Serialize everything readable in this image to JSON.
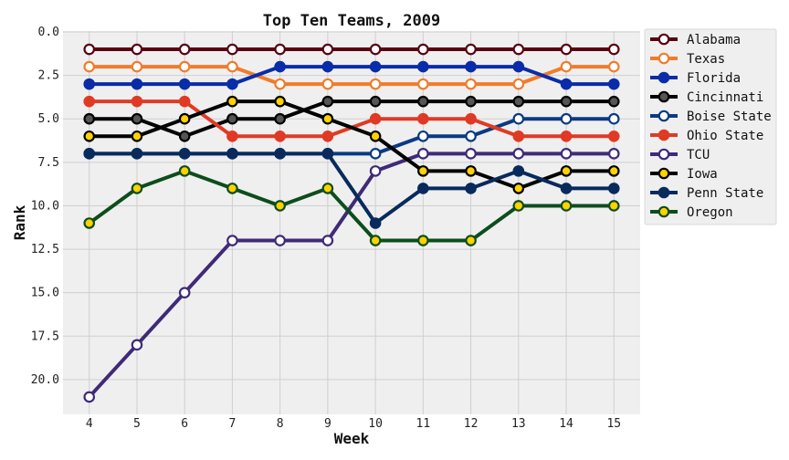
{
  "chart_data": {
    "type": "line",
    "title": "Top Ten Teams, 2009",
    "xlabel": "Week",
    "ylabel": "Rank",
    "x": [
      4,
      5,
      6,
      7,
      8,
      9,
      10,
      11,
      12,
      13,
      14,
      15
    ],
    "ylim": [
      0,
      22
    ],
    "y_inverted": true,
    "yticks": [
      "0.0",
      "2.5",
      "5.0",
      "7.5",
      "10.0",
      "12.5",
      "15.0",
      "17.5",
      "20.0"
    ],
    "grid": true,
    "legend_position": "outside-right-top",
    "background": "#efefef",
    "series": [
      {
        "name": "Alabama",
        "color": "#5a0012",
        "marker_fill": "#ffffff",
        "values": [
          1,
          1,
          1,
          1,
          1,
          1,
          1,
          1,
          1,
          1,
          1,
          1
        ]
      },
      {
        "name": "Texas",
        "color": "#f07c2c",
        "marker_fill": "#ffffff",
        "values": [
          2,
          2,
          2,
          2,
          3,
          3,
          3,
          3,
          3,
          3,
          2,
          2
        ]
      },
      {
        "name": "Florida",
        "color": "#0a2ca8",
        "marker_fill": "#0a2ca8",
        "values": [
          3,
          3,
          3,
          3,
          2,
          2,
          2,
          2,
          2,
          2,
          3,
          3
        ]
      },
      {
        "name": "Cincinnati",
        "color": "#000000",
        "marker_fill": "#555555",
        "values": [
          5,
          5,
          6,
          5,
          5,
          4,
          4,
          4,
          4,
          4,
          4,
          4
        ]
      },
      {
        "name": "Boise State",
        "color": "#0b3a82",
        "marker_fill": "#ffffff",
        "values": [
          7,
          7,
          7,
          7,
          7,
          7,
          7,
          6,
          6,
          5,
          5,
          5
        ]
      },
      {
        "name": "Ohio State",
        "color": "#e03a24",
        "marker_fill": "#e03a24",
        "values": [
          4,
          4,
          4,
          6,
          6,
          6,
          5,
          5,
          5,
          6,
          6,
          6
        ]
      },
      {
        "name": "TCU",
        "color": "#3f2a78",
        "marker_fill": "#ffffff",
        "values": [
          21,
          18,
          15,
          12,
          12,
          12,
          8,
          7,
          7,
          7,
          7,
          7
        ]
      },
      {
        "name": "Iowa",
        "color": "#000000",
        "marker_fill": "#ffd200",
        "values": [
          6,
          6,
          5,
          4,
          4,
          5,
          6,
          8,
          8,
          9,
          8,
          8
        ]
      },
      {
        "name": "Penn State",
        "color": "#082a5c",
        "marker_fill": "#082a5c",
        "values": [
          7,
          7,
          7,
          7,
          7,
          7,
          11,
          9,
          9,
          8,
          9,
          9
        ]
      },
      {
        "name": "Oregon",
        "color": "#0d4d1c",
        "marker_fill": "#ffd200",
        "values": [
          11,
          9,
          8,
          9,
          10,
          9,
          12,
          12,
          12,
          10,
          10,
          10
        ]
      }
    ]
  }
}
